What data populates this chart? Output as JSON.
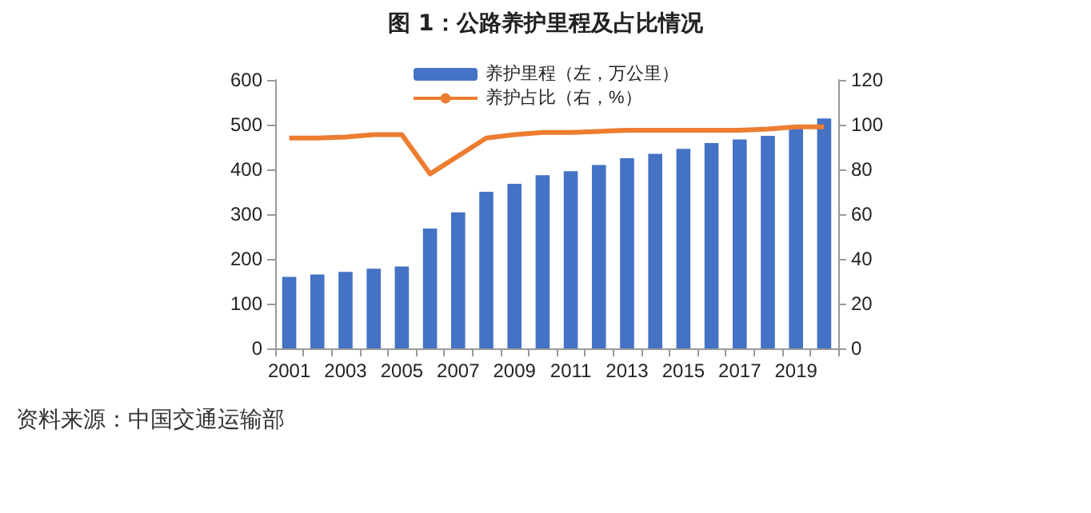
{
  "chart_data": {
    "type": "bar",
    "title": "图 1：公路养护里程及占比情况",
    "annotations": [
      "资料来源：中国交通运输部"
    ],
    "categories": [
      "2001",
      null,
      "2003",
      null,
      "2005",
      null,
      "2007",
      null,
      "2009",
      null,
      "2011",
      null,
      "2013",
      null,
      "2015",
      null,
      "2017",
      null,
      "2019",
      null
    ],
    "series": [
      {
        "name": "养护里程（左，万公里）",
        "color": "#4472c4",
        "values": [
          160,
          165,
          171,
          178,
          183,
          268,
          304,
          350,
          368,
          387,
          396,
          410,
          425,
          435,
          446,
          459,
          467,
          475,
          492,
          514
        ]
      },
      {
        "name": "养护占比（右，%）",
        "type": "line",
        "axis": "y2",
        "color": "#ed7d31",
        "values": [
          94,
          94,
          94.5,
          95.5,
          95.5,
          78,
          86,
          94,
          95.5,
          96.5,
          96.5,
          97,
          97.5,
          97.5,
          97.5,
          97.5,
          97.5,
          98,
          99,
          99
        ]
      }
    ],
    "ylim": [
      0,
      600
    ],
    "yticks": [
      0,
      100,
      200,
      300,
      400,
      500,
      600
    ],
    "y2lim": [
      0,
      120
    ],
    "y2ticks": [
      0,
      20,
      40,
      60,
      80,
      100,
      120
    ],
    "grid": false,
    "legend": "top",
    "marker": "none",
    "line_style": "solid"
  }
}
